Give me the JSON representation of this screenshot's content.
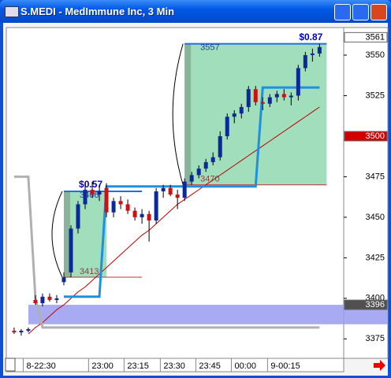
{
  "window": {
    "title": "S.MEDI - MedImmune Inc, 3 Min"
  },
  "chart_data": {
    "type": "candlestick",
    "up_color": "#0a2a9a",
    "down_color": "#d01010",
    "open": [
      3380,
      3379,
      3380,
      3399,
      3397,
      3401,
      3399,
      3410,
      3416,
      3443,
      3458,
      3467,
      3464,
      3468,
      3453,
      3460,
      3458,
      3454,
      3450,
      3452,
      3448,
      3466,
      3468,
      3464,
      3462,
      3472,
      3476,
      3480,
      3484,
      3487,
      3500,
      3512,
      3514,
      3518,
      3529,
      3521,
      3520,
      3524,
      3526,
      3524,
      3525,
      3542,
      3550,
      3551
    ],
    "high": [
      3382,
      3381,
      3382,
      3402,
      3403,
      3403,
      3402,
      3416,
      3445,
      3460,
      3470,
      3472,
      3470,
      3471,
      3462,
      3463,
      3461,
      3456,
      3455,
      3454,
      3468,
      3470,
      3470,
      3467,
      3474,
      3478,
      3482,
      3486,
      3490,
      3503,
      3514,
      3516,
      3520,
      3531,
      3531,
      3524,
      3526,
      3528,
      3529,
      3527,
      3544,
      3552,
      3554,
      3557
    ],
    "low": [
      3378,
      3377,
      3379,
      3396,
      3395,
      3398,
      3397,
      3408,
      3413,
      3440,
      3455,
      3462,
      3460,
      3450,
      3450,
      3455,
      3452,
      3448,
      3446,
      3435,
      3446,
      3462,
      3463,
      3455,
      3460,
      3470,
      3474,
      3478,
      3482,
      3485,
      3498,
      3508,
      3511,
      3515,
      3519,
      3516,
      3518,
      3521,
      3522,
      3519,
      3522,
      3540,
      3546,
      3549
    ],
    "close": [
      3379,
      3380,
      3381,
      3397,
      3401,
      3399,
      3400,
      3413,
      3443,
      3458,
      3467,
      3464,
      3466,
      3453,
      3460,
      3458,
      3454,
      3450,
      3452,
      3448,
      3466,
      3468,
      3464,
      3462,
      3472,
      3476,
      3480,
      3484,
      3487,
      3500,
      3512,
      3514,
      3518,
      3529,
      3521,
      3520,
      3524,
      3526,
      3524,
      3525,
      3542,
      3550,
      3551,
      3555
    ],
    "overlays": [
      {
        "color": "#c00000",
        "values": [
          null,
          null,
          3378,
          3382,
          3385,
          3389,
          3393,
          3396,
          3400,
          3404,
          3407,
          3411,
          3415,
          3419,
          3423,
          3427,
          3431,
          3435,
          3439,
          3442,
          3446,
          3450,
          3454,
          3458,
          3461,
          3464,
          3467,
          3470,
          3473,
          3476,
          3479,
          3482,
          3485,
          3488,
          3491,
          3494,
          3497,
          3500,
          3503,
          3506,
          3509,
          3512,
          3515,
          3518
        ]
      },
      {
        "color": "#1e90e0",
        "values": [
          null,
          null,
          null,
          null,
          null,
          null,
          null,
          3401,
          3401,
          3401,
          3401,
          3401,
          3401,
          3469,
          3469,
          3469,
          3469,
          3469,
          3469,
          3469,
          3469,
          3469,
          3469,
          3469,
          3469,
          3469,
          3469,
          3469,
          3469,
          3469,
          3469,
          3469,
          3469,
          3469,
          3469,
          3530,
          3530,
          3530,
          3530,
          3530,
          3530,
          3530,
          3530,
          3530
        ]
      },
      {
        "color": "#b0b0b0",
        "values": [
          3475,
          3475,
          3475,
          3400,
          3382,
          3382,
          3382,
          3382,
          3382,
          3382,
          3382,
          3382,
          3382,
          3382,
          3382,
          3382,
          3382,
          3382,
          3382,
          3382,
          3382,
          3382,
          3382,
          3382,
          3382,
          3382,
          3382,
          3382,
          3382,
          3382,
          3382,
          3382,
          3382,
          3382,
          3382,
          3382,
          3382,
          3382,
          3382,
          3382,
          3382,
          3382,
          3382,
          3382
        ]
      }
    ],
    "band": {
      "from": 3384,
      "to": 3396,
      "color": "#9a9cf0"
    },
    "boxes": [
      {
        "start": 7,
        "end": 13,
        "low": 3413,
        "high": 3466,
        "gain": "$0.57"
      },
      {
        "start": 24,
        "end": 44,
        "low": 3470,
        "high": 3557,
        "gain": "$0.87"
      }
    ],
    "ylim": [
      3363,
      3567
    ],
    "yticks": [
      3375,
      3400,
      3425,
      3450,
      3475,
      3525,
      3550
    ],
    "markers": [
      {
        "value": 3561,
        "background": "#ffffff",
        "text_color": "#000000"
      },
      {
        "value": 3500,
        "background": "#d40000",
        "text_color": "#ffffff"
      },
      {
        "value": 3396,
        "background": "#505050",
        "text_color": "#ffffff"
      }
    ],
    "xlim": [
      -1.1,
      46.4
    ],
    "xticks": [
      {
        "value": 3.5,
        "label": "8-22:30"
      },
      {
        "value": 12.7,
        "label": "23:00"
      },
      {
        "value": 17.7,
        "label": "23:15"
      },
      {
        "value": 22.8,
        "label": "23:30"
      },
      {
        "value": 27.8,
        "label": "23:45"
      },
      {
        "value": 32.8,
        "label": "00:00"
      },
      {
        "value": 37.9,
        "label": "9-00:15"
      }
    ]
  }
}
